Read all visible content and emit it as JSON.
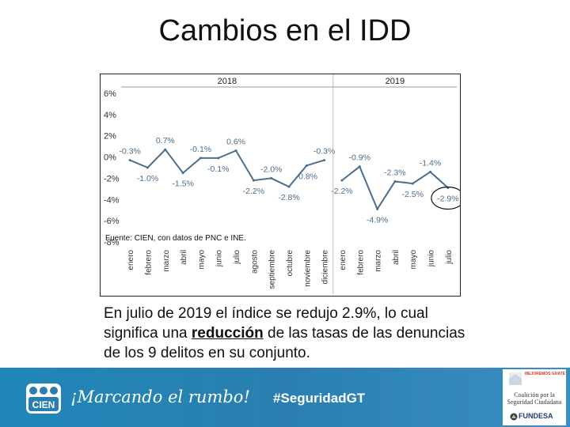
{
  "slide": {
    "title": "Cambios en el IDD",
    "caption_pre": "En julio de 2019 el índice se redujo 2.9%, lo cual significa una ",
    "caption_bold": "reducción",
    "caption_post": " de las tasas de las denuncias de los 9 delitos en su conjunto."
  },
  "footer": {
    "brand": "CIEN",
    "slogan": "¡Marcando el rumbo!",
    "hashtag": "#SeguridadGT",
    "partner_top": "MEJOREMOS GUATE",
    "partner_line1": "Coalición por la",
    "partner_line2": "Seguridad Ciudadana",
    "partner_name": "FUNDESA"
  },
  "colors": {
    "line": "#4a6e8e",
    "label": "#4a6e8e",
    "footer": "#2a7fb0"
  },
  "chart_data": {
    "type": "line",
    "source_note": "Fuente: CIEN, con datos de PNC e INE.",
    "groups": [
      {
        "name": "2018",
        "categories": [
          "enero",
          "febrero",
          "marzo",
          "abril",
          "mayo",
          "junio",
          "julio",
          "agosto",
          "septiembre",
          "octubre",
          "noviembre",
          "diciembre"
        ],
        "values": [
          -0.3,
          -1.0,
          0.7,
          -1.5,
          -0.1,
          -0.1,
          0.6,
          -2.2,
          -2.0,
          -2.8,
          -0.8,
          -0.3
        ]
      },
      {
        "name": "2019",
        "categories": [
          "enero",
          "febrero",
          "marzo",
          "abril",
          "mayo",
          "junio",
          "julio"
        ],
        "values": [
          -2.2,
          -0.9,
          -4.9,
          -2.3,
          -2.5,
          -1.4,
          -2.9
        ]
      }
    ],
    "ylim": [
      -8,
      6
    ],
    "yticks": [
      "6%",
      "4%",
      "2%",
      "0%",
      "-2%",
      "-4%",
      "-6%",
      "-8%"
    ],
    "ytick_values": [
      6,
      4,
      2,
      0,
      -2,
      -4,
      -6,
      -8
    ],
    "highlighted": "-2.9%"
  }
}
